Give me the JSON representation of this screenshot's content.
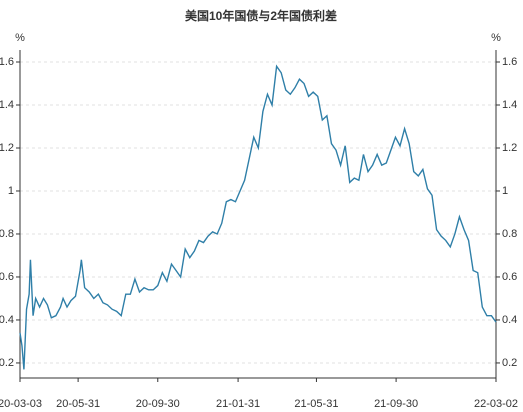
{
  "chart_data": {
    "type": "line",
    "title": "美国10年国债与2年国债利差",
    "y_unit": "%",
    "y2_unit": "%",
    "x": [
      "20-03-03",
      "20-03-06",
      "20-03-09",
      "20-03-13",
      "20-03-17",
      "20-03-19",
      "20-03-23",
      "20-03-27",
      "20-04-02",
      "20-04-08",
      "20-04-14",
      "20-04-20",
      "20-04-27",
      "20-05-04",
      "20-05-08",
      "20-05-14",
      "20-05-20",
      "20-05-27",
      "20-06-03",
      "20-06-05",
      "20-06-10",
      "20-06-17",
      "20-06-24",
      "20-07-01",
      "20-07-08",
      "20-07-15",
      "20-07-22",
      "20-07-29",
      "20-08-05",
      "20-08-12",
      "20-08-19",
      "20-08-26",
      "20-09-02",
      "20-09-09",
      "20-09-16",
      "20-09-23",
      "20-09-30",
      "20-10-07",
      "20-10-14",
      "20-10-21",
      "20-10-28",
      "20-11-04",
      "20-11-11",
      "20-11-18",
      "20-11-25",
      "20-12-02",
      "20-12-09",
      "20-12-16",
      "20-12-23",
      "20-12-30",
      "21-01-06",
      "21-01-13",
      "21-01-20",
      "21-01-27",
      "21-02-03",
      "21-02-10",
      "21-02-17",
      "21-02-24",
      "21-03-03",
      "21-03-10",
      "21-03-17",
      "21-03-24",
      "21-03-31",
      "21-04-07",
      "21-04-14",
      "21-04-21",
      "21-04-28",
      "21-05-05",
      "21-05-12",
      "21-05-19",
      "21-05-26",
      "21-06-02",
      "21-06-09",
      "21-06-16",
      "21-06-23",
      "21-06-30",
      "21-07-07",
      "21-07-14",
      "21-07-21",
      "21-07-28",
      "21-08-04",
      "21-08-11",
      "21-08-18",
      "21-08-25",
      "21-09-01",
      "21-09-08",
      "21-09-15",
      "21-09-22",
      "21-09-29",
      "21-10-06",
      "21-10-13",
      "21-10-20",
      "21-10-27",
      "21-11-03",
      "21-11-10",
      "21-11-17",
      "21-11-24",
      "21-12-01",
      "21-12-08",
      "21-12-15",
      "21-12-22",
      "21-12-29",
      "22-01-05",
      "22-01-12",
      "22-01-19",
      "22-01-26",
      "22-02-02",
      "22-02-09",
      "22-02-16",
      "22-02-23",
      "22-03-02"
    ],
    "series": [
      {
        "color": "#2f7fa8",
        "values": [
          0.34,
          0.28,
          0.17,
          0.45,
          0.52,
          0.68,
          0.42,
          0.5,
          0.46,
          0.5,
          0.47,
          0.41,
          0.42,
          0.46,
          0.5,
          0.46,
          0.49,
          0.51,
          0.63,
          0.68,
          0.55,
          0.53,
          0.5,
          0.52,
          0.48,
          0.47,
          0.45,
          0.44,
          0.42,
          0.52,
          0.52,
          0.59,
          0.53,
          0.55,
          0.54,
          0.54,
          0.56,
          0.62,
          0.58,
          0.66,
          0.63,
          0.6,
          0.73,
          0.69,
          0.72,
          0.77,
          0.76,
          0.79,
          0.81,
          0.8,
          0.85,
          0.95,
          0.96,
          0.95,
          1.0,
          1.05,
          1.15,
          1.25,
          1.2,
          1.37,
          1.45,
          1.4,
          1.58,
          1.55,
          1.47,
          1.45,
          1.48,
          1.52,
          1.5,
          1.44,
          1.46,
          1.44,
          1.33,
          1.35,
          1.22,
          1.19,
          1.12,
          1.21,
          1.04,
          1.06,
          1.05,
          1.17,
          1.09,
          1.12,
          1.17,
          1.12,
          1.13,
          1.19,
          1.25,
          1.21,
          1.29,
          1.22,
          1.09,
          1.07,
          1.1,
          1.01,
          0.98,
          0.82,
          0.79,
          0.77,
          0.74,
          0.8,
          0.88,
          0.82,
          0.77,
          0.63,
          0.62,
          0.46,
          0.42,
          0.42,
          0.39
        ]
      }
    ],
    "xlim": [
      "20-03-03",
      "22-03-02"
    ],
    "xticks": [
      "20-03-03",
      "20-05-31",
      "20-09-30",
      "21-01-31",
      "21-05-31",
      "21-09-30",
      "22-03-02"
    ],
    "ylim": [
      0.13,
      1.6
    ],
    "yticks": [
      0.2,
      0.4,
      0.6,
      0.8,
      1,
      1.2,
      1.4,
      1.6
    ],
    "y2lim": [
      0.13,
      1.6
    ],
    "y2ticks": [
      0.2,
      0.4,
      0.6,
      0.8,
      1,
      1.2,
      1.4,
      1.6
    ],
    "grid": true
  }
}
